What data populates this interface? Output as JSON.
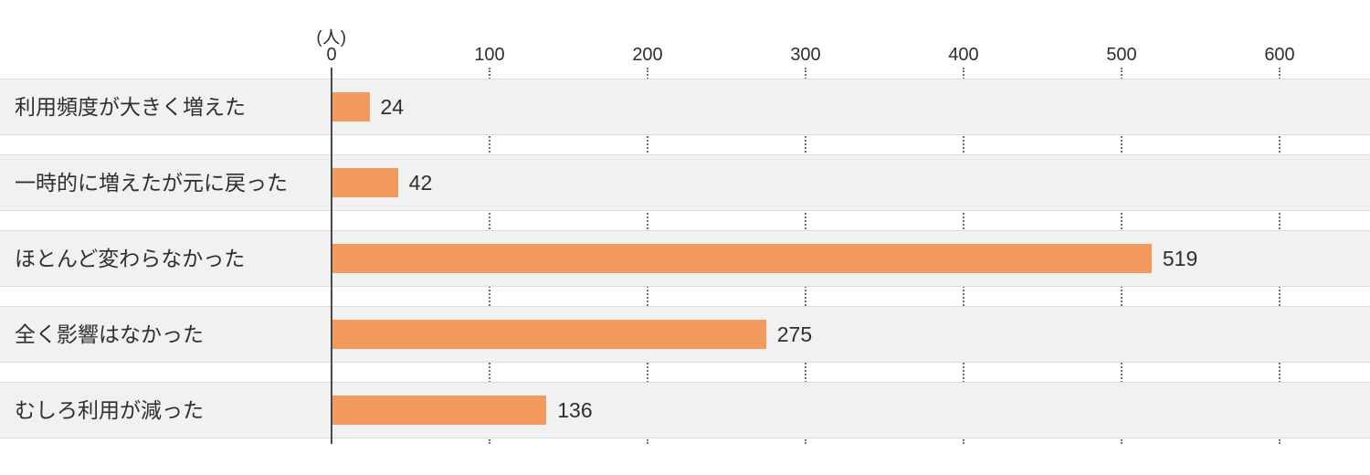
{
  "chart_data": {
    "type": "bar",
    "orientation": "horizontal",
    "title": "",
    "unit": "(人)",
    "categories": [
      "利用頻度が大きく増えた",
      "一時的に増えたが元に戻った",
      "ほとんど変わらなかった",
      "全く影響はなかった",
      "むしろ利用が減った"
    ],
    "values": [
      24,
      42,
      519,
      275,
      136
    ],
    "ticks": [
      0,
      100,
      200,
      300,
      400,
      500,
      600
    ],
    "xlim": [
      0,
      600
    ],
    "grid": "dotted-vertical-in-gaps",
    "legend": "none",
    "colors": {
      "bar": "#F2995E",
      "band": "#F1F1F1",
      "band_border": "#DCDCDC",
      "axis": "#4A4A4A",
      "grid": "#6F6F6F",
      "text": "#322E2B"
    }
  }
}
